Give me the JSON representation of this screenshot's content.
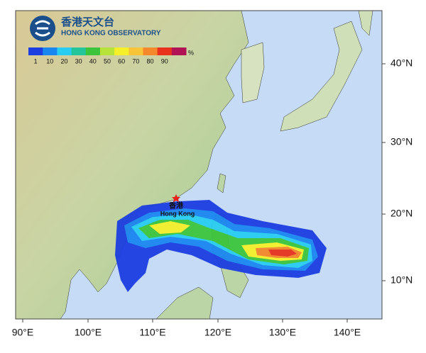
{
  "header": {
    "title_zh": "香港天文台",
    "title_en": "HONG KONG OBSERVATORY"
  },
  "legend": {
    "labels": [
      "1",
      "10",
      "20",
      "30",
      "40",
      "50",
      "60",
      "70",
      "80",
      "90"
    ],
    "unit": "%",
    "colors": [
      "#1c3ee0",
      "#1a86f0",
      "#29cdf2",
      "#23c59a",
      "#3cc43c",
      "#b6e23a",
      "#f5f02a",
      "#f8c43a",
      "#f5882a",
      "#e8321e",
      "#b01254"
    ]
  },
  "places": {
    "hk_zh": "香港",
    "hk_en": "Hong Kong"
  },
  "axes": {
    "lon_labels": [
      "90°E",
      "100°E",
      "110°E",
      "120°E",
      "130°E",
      "140°E"
    ],
    "lat_labels": [
      "40°N",
      "30°N",
      "20°N",
      "10°N"
    ]
  }
}
